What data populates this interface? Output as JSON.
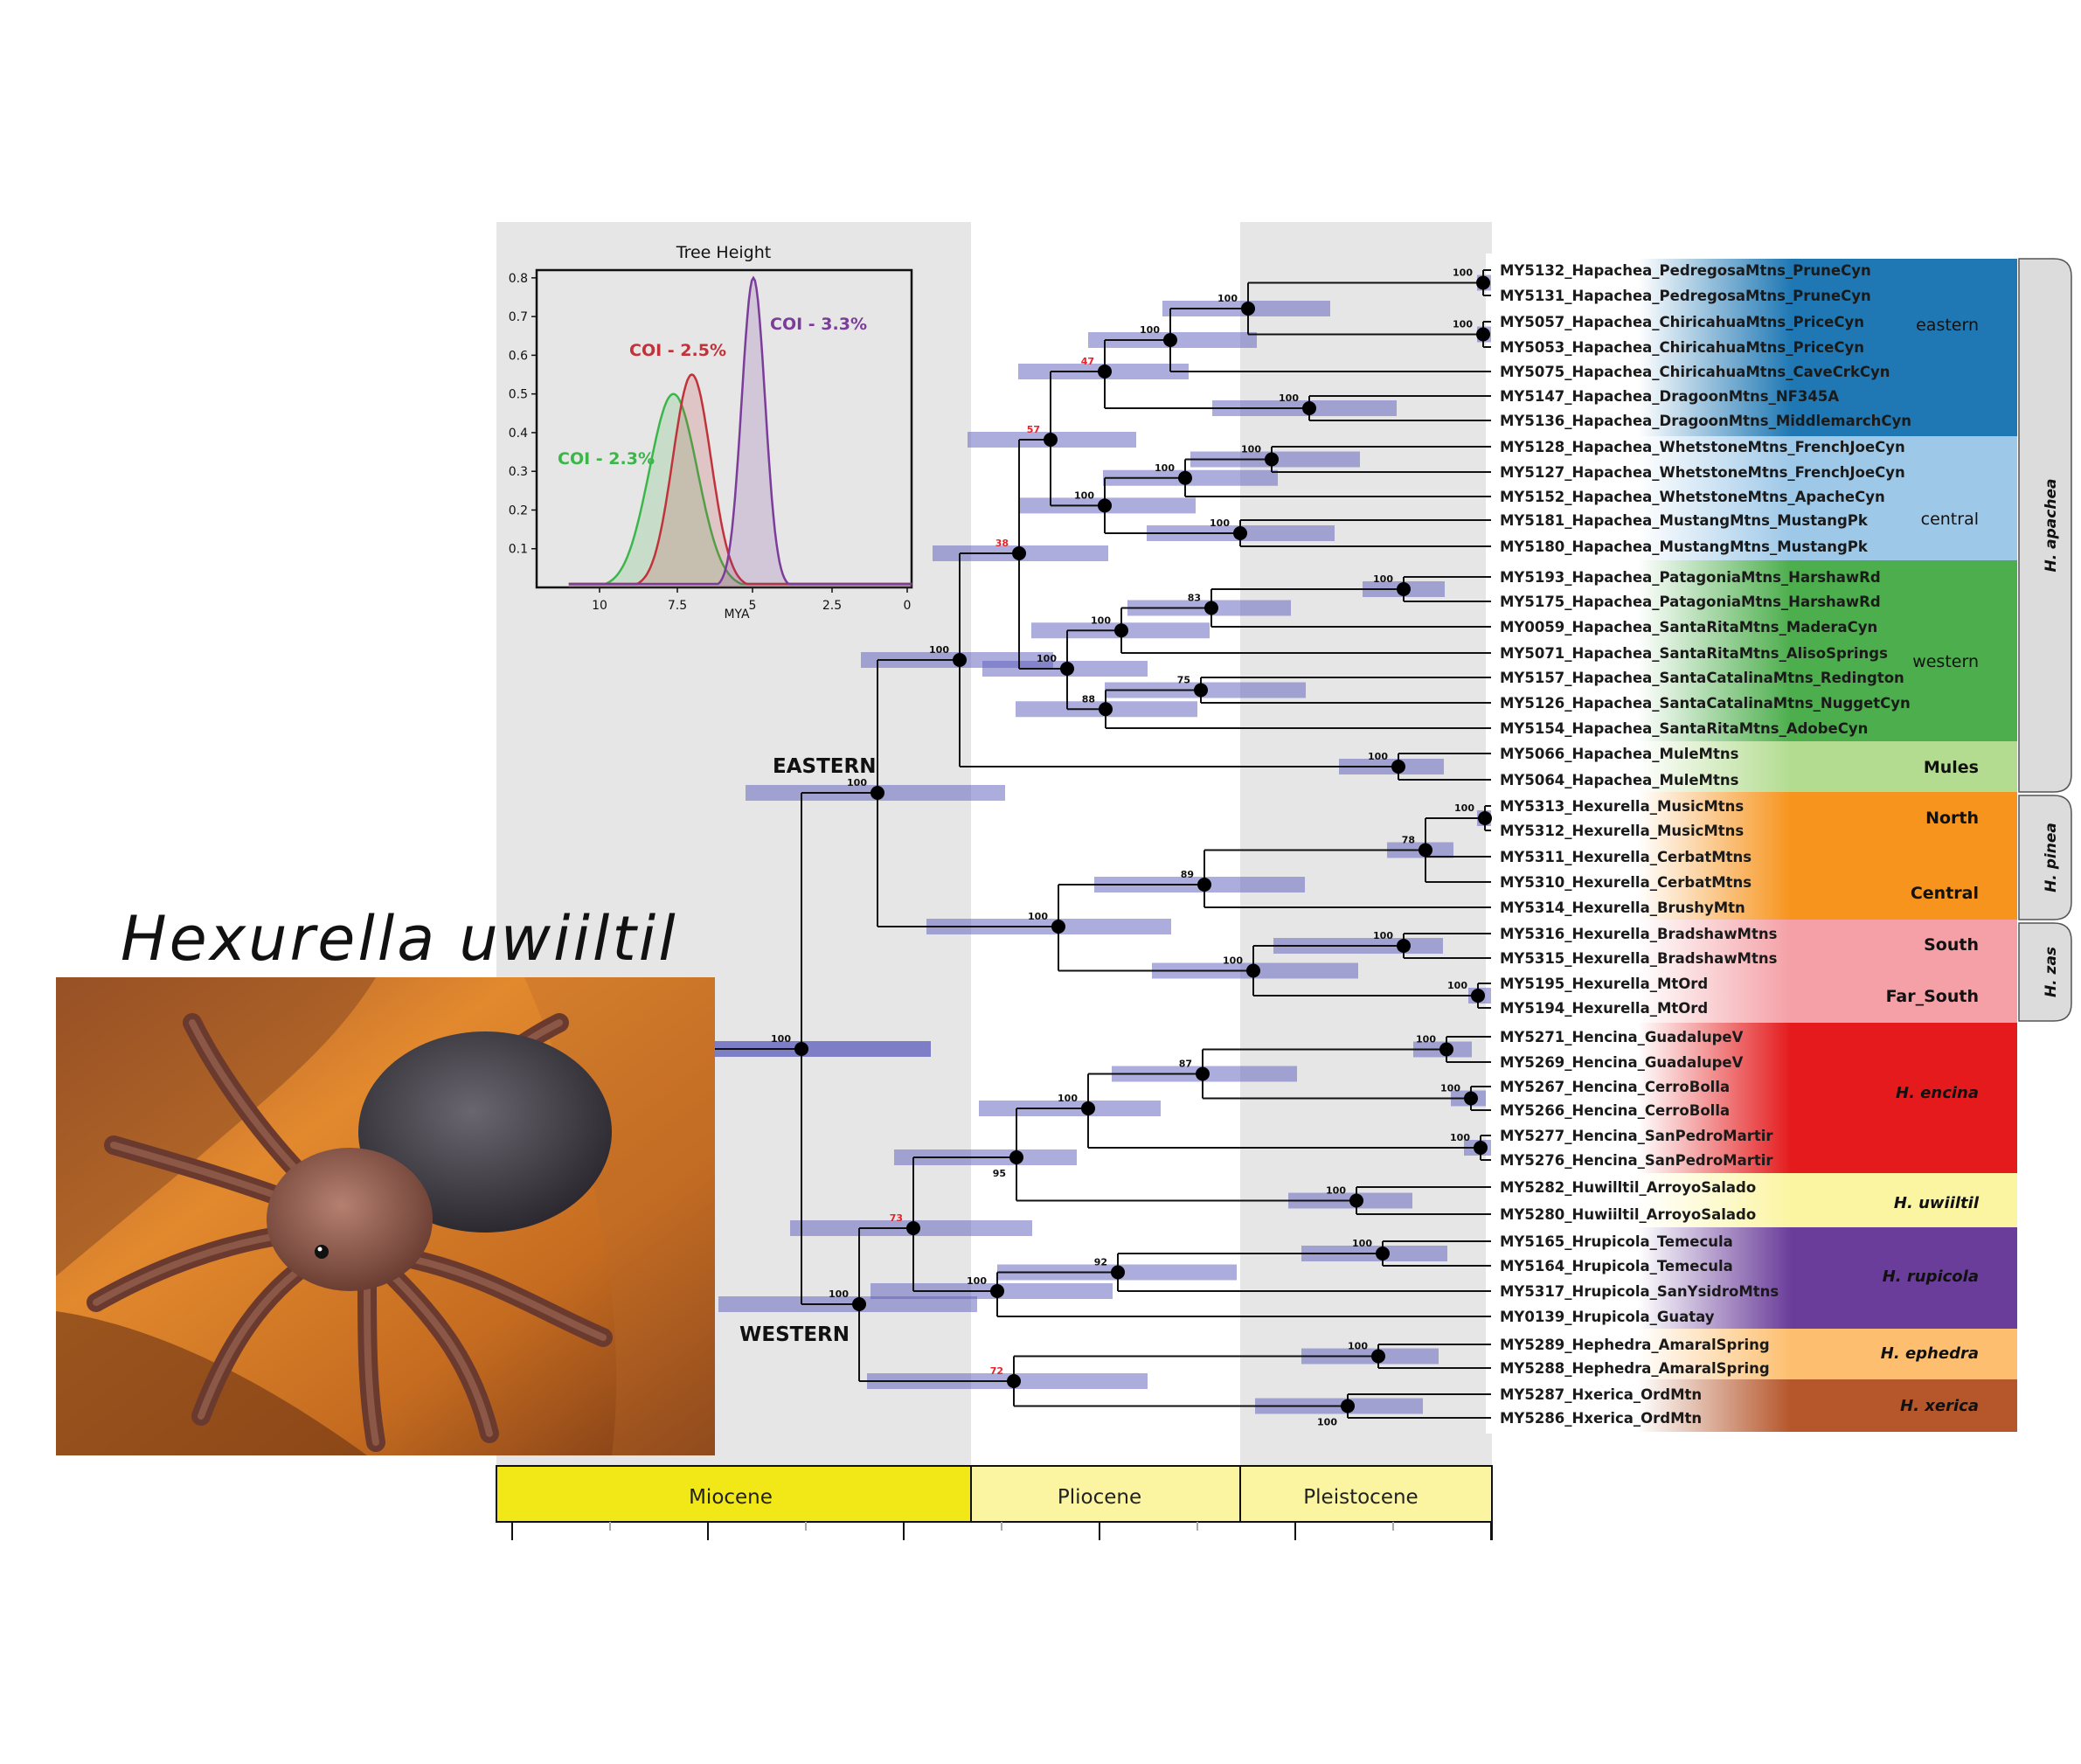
{
  "title": "Hexurella uwiiltil",
  "photo": {
    "icon": "spider-photo"
  },
  "inset": {
    "title": "Tree Height",
    "x_axis_label": "MYA",
    "x_ticks": [
      "10",
      "7.5",
      "5",
      "2.5",
      "0"
    ],
    "y_ticks": [
      "0.1",
      "0.2",
      "0.3",
      "0.4",
      "0.5",
      "0.6",
      "0.7",
      "0.8"
    ],
    "series": [
      {
        "name": "COI - 2.3%",
        "color": "#3cb64a",
        "peak_mya": 7.6,
        "peak_density": 0.5
      },
      {
        "name": "COI - 2.5%",
        "color": "#c0333a",
        "peak_mya": 7.0,
        "peak_density": 0.55
      },
      {
        "name": "COI - 3.3%",
        "color": "#7b3c9a",
        "peak_mya": 5.0,
        "peak_density": 0.8
      }
    ]
  },
  "clades": {
    "eastern": "EASTERN",
    "western": "WESTERN"
  },
  "timescale": {
    "epochs": [
      {
        "name": "Miocene",
        "color": "#f2e818"
      },
      {
        "name": "Pliocene",
        "color": "#fbf5a2"
      },
      {
        "name": "Pleistocene",
        "color": "#fbf5a2"
      }
    ]
  },
  "tips": [
    "MY5132_Hapachea_PedregosaMtns_PruneCyn",
    "MY5131_Hapachea_PedregosaMtns_PruneCyn",
    "MY5057_Hapachea_ChiricahuaMtns_PriceCyn",
    "MY5053_Hapachea_ChiricahuaMtns_PriceCyn",
    "MY5075_Hapachea_ChiricahuaMtns_CaveCrkCyn",
    "MY5147_Hapachea_DragoonMtns_NF345A",
    "MY5136_Hapachea_DragoonMtns_MiddlemarchCyn",
    "MY5128_Hapachea_WhetstoneMtns_FrenchJoeCyn",
    "MY5127_Hapachea_WhetstoneMtns_FrenchJoeCyn",
    "MY5152_Hapachea_WhetstoneMtns_ApacheCyn",
    "MY5181_Hapachea_MustangMtns_MustangPk",
    "MY5180_Hapachea_MustangMtns_MustangPk",
    "MY5193_Hapachea_PatagoniaMtns_HarshawRd",
    "MY5175_Hapachea_PatagoniaMtns_HarshawRd",
    "MY0059_Hapachea_SantaRitaMtns_MaderaCyn",
    "MY5071_Hapachea_SantaRitaMtns_AlisoSprings",
    "MY5157_Hapachea_SantaCatalinaMtns_Redington",
    "MY5126_Hapachea_SantaCatalinaMtns_NuggetCyn",
    "MY5154_Hapachea_SantaRitaMtns_AdobeCyn",
    "MY5066_Hapachea_MuleMtns",
    "MY5064_Hapachea_MuleMtns",
    "MY5313_Hexurella_MusicMtns",
    "MY5312_Hexurella_MusicMtns",
    "MY5311_Hexurella_CerbatMtns",
    "MY5310_Hexurella_CerbatMtns",
    "MY5314_Hexurella_BrushyMtn",
    "MY5316_Hexurella_BradshawMtns",
    "MY5315_Hexurella_BradshawMtns",
    "MY5195_Hexurella_MtOrd",
    "MY5194_Hexurella_MtOrd",
    "MY5271_Hencina_GuadalupeV",
    "MY5269_Hencina_GuadalupeV",
    "MY5267_Hencina_CerroBolla",
    "MY5266_Hencina_CerroBolla",
    "MY5277_Hencina_SanPedroMartir",
    "MY5276_Hencina_SanPedroMartir",
    "MY5282_Huwilltil_ArroyoSalado",
    "MY5280_Huwiiltil_ArroyoSalado",
    "MY5165_Hrupicola_Temecula",
    "MY5164_Hrupicola_Temecula",
    "MY5317_Hrupicola_SanYsidroMtns",
    "MY0139_Hrupicola_Guatay",
    "MY5289_Hephedra_AmaralSpring",
    "MY5288_Hephedra_AmaralSpring",
    "MY5287_Hxerica_OrdMtn",
    "MY5286_Hxerica_OrdMtn"
  ],
  "groups": [
    {
      "label": "eastern",
      "style": "plain",
      "color": "#1f78b4"
    },
    {
      "label": "central",
      "style": "plain",
      "color": "#9dc8e8"
    },
    {
      "label": "western",
      "style": "plain",
      "color": "#4cae4c"
    },
    {
      "label": "Mules",
      "style": "bold",
      "color": "#b3dc90"
    },
    {
      "label": "North",
      "style": "bold",
      "color": "#f7941d"
    },
    {
      "label": "Central",
      "style": "bold",
      "color": "#f7941d"
    },
    {
      "label": "South",
      "style": "bold",
      "color": "#f4a0a6"
    },
    {
      "label": "Far_South",
      "style": "bold",
      "color": "#f4a0a6"
    },
    {
      "label": "H. encina",
      "style": "ital",
      "color": "#e41a1c"
    },
    {
      "label": "H. uwiiltil",
      "style": "ital",
      "color": "#fbf5a2"
    },
    {
      "label": "H. rupicola",
      "style": "ital",
      "color": "#6a3d9a"
    },
    {
      "label": "H. ephedra",
      "style": "ital",
      "color": "#fdbf6f"
    },
    {
      "label": "H. xerica",
      "style": "ital",
      "color": "#b5562b"
    }
  ],
  "species_brackets": [
    {
      "label": "H. apachea"
    },
    {
      "label": "H. pinea"
    },
    {
      "label": "H. zas"
    }
  ],
  "supports": {
    "n_east": "100",
    "n_hap": "100",
    "n_apache": "100",
    "n_EC": "38",
    "n_E": "57",
    "n_E1": "47",
    "n_E2": "100",
    "n_pedchi": "100",
    "n_ped": "100",
    "n_chi": "100",
    "n_drag": "100",
    "n_C": "100",
    "n_C1": "100",
    "n_whet": "100",
    "n_must": "100",
    "n_W": "100",
    "n_W1": "100",
    "n_W1a": "83",
    "n_pat": "100",
    "n_W2": "88",
    "n_W2a": "75",
    "n_mule": "100",
    "n_pz": "100",
    "n_P": "89",
    "n_P1": "100",
    "n_P2": "78",
    "n_mus": "100",
    "n_Z": "100",
    "n_brad": "100",
    "n_ord": "100",
    "n_west": "100",
    "n_W73": "73",
    "n_W95": "95",
    "n_enc": "100",
    "n_enc2": "87",
    "n_guad": "100",
    "n_cerro": "100",
    "n_spm": "100",
    "n_uwi": "100",
    "n_rup": "100",
    "n_rup2": "92",
    "n_tem": "100",
    "n_ephx": "72",
    "n_eph": "100",
    "n_xer": "100"
  }
}
